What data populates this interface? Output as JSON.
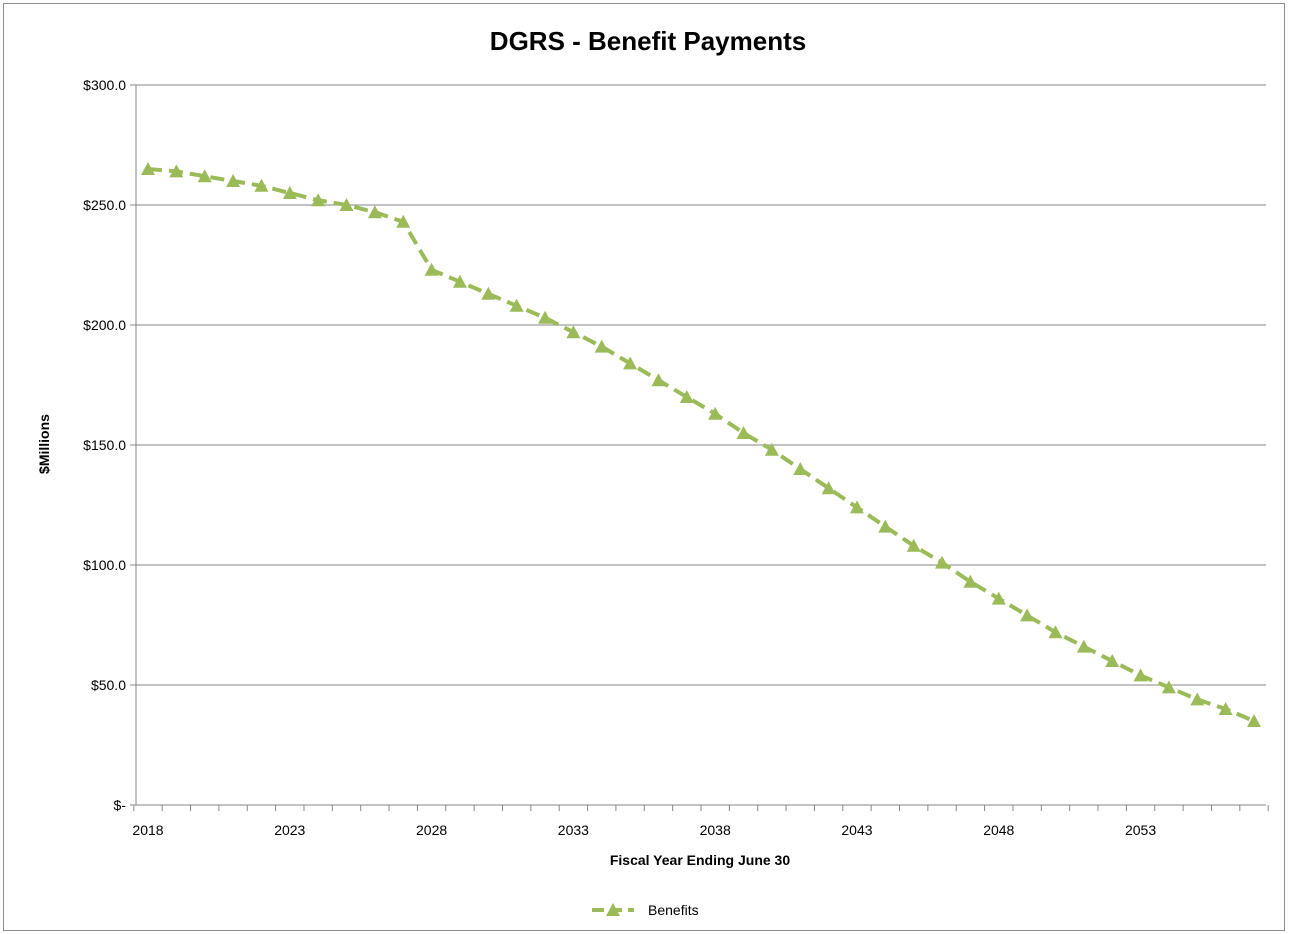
{
  "chart_data": {
    "type": "line",
    "title": "DGRS - Benefit Payments",
    "xlabel": "Fiscal Year Ending June 30",
    "ylabel": "$Millions",
    "ylim": [
      0,
      300
    ],
    "xlim": [
      2018,
      2057
    ],
    "x_ticks": [
      "2018",
      "2023",
      "2028",
      "2033",
      "2038",
      "2043",
      "2048",
      "2053"
    ],
    "y_ticks": [
      "$-",
      "$50.0",
      "$100.0",
      "$150.0",
      "$200.0",
      "$250.0",
      "$300.0"
    ],
    "y_tick_values": [
      0,
      50,
      100,
      150,
      200,
      250,
      300
    ],
    "x_tick_values": [
      2018,
      2023,
      2028,
      2033,
      2038,
      2043,
      2048,
      2053
    ],
    "grid": true,
    "legend_position": "bottom",
    "series": [
      {
        "name": "Benefits",
        "color": "#9bbb59",
        "marker": "triangle",
        "line_style": "dashed",
        "x": [
          2018,
          2019,
          2020,
          2021,
          2022,
          2023,
          2024,
          2025,
          2026,
          2027,
          2028,
          2029,
          2030,
          2031,
          2032,
          2033,
          2034,
          2035,
          2036,
          2037,
          2038,
          2039,
          2040,
          2041,
          2042,
          2043,
          2044,
          2045,
          2046,
          2047,
          2048,
          2049,
          2050,
          2051,
          2052,
          2053,
          2054,
          2055,
          2056,
          2057
        ],
        "values": [
          265,
          264,
          262,
          260,
          258,
          255,
          252,
          250,
          247,
          243,
          223,
          218,
          213,
          208,
          203,
          197,
          191,
          184,
          177,
          170,
          163,
          155,
          148,
          140,
          132,
          124,
          116,
          108,
          101,
          93,
          86,
          79,
          72,
          66,
          60,
          54,
          49,
          44,
          40,
          35
        ]
      }
    ]
  }
}
